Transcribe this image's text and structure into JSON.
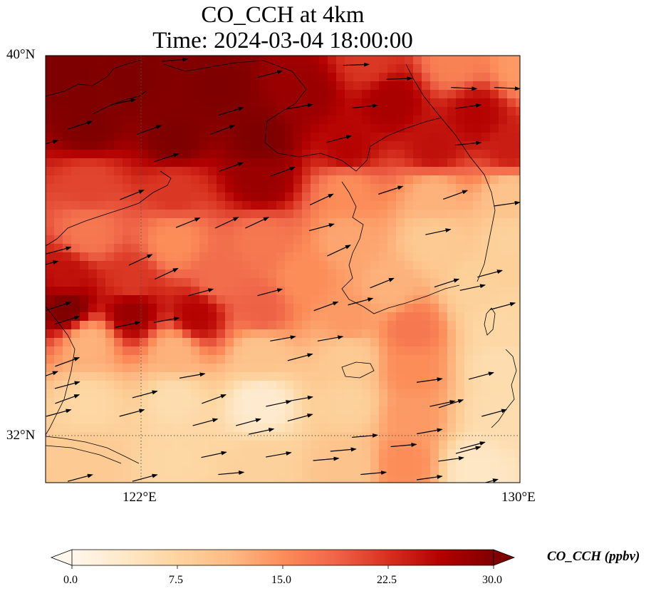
{
  "title": {
    "line1": "CO_CCH at 4km",
    "line2": "Time: 2024-03-04 18:00:00"
  },
  "map": {
    "lon_range": [
      119,
      130
    ],
    "lat_range": [
      30.8,
      40
    ],
    "lat_ticks": [
      "40°N",
      "32°N"
    ],
    "lon_ticks": [
      "122°E",
      "130°E"
    ],
    "gridlines": {
      "lat": [
        32
      ],
      "lon": [
        122
      ],
      "style": "dotted"
    }
  },
  "colorbar": {
    "label": "CO_CCH (ppbv)",
    "ticks": [
      "0.0",
      "7.5",
      "15.0",
      "22.5",
      "30.0"
    ],
    "range": [
      0,
      30
    ],
    "colormap": "OrRd",
    "colors": [
      "#fff7ec",
      "#fee8c8",
      "#fdd49e",
      "#fdbb84",
      "#fc8d59",
      "#ef6548",
      "#d7301f",
      "#b30000",
      "#7f0000"
    ],
    "extend": "both"
  },
  "field_description": "CO concentration field with high values (~30 ppbv) over the Bohai Sea / northern Yellow Sea band and a secondary band near 34.5°N; low values (~3-8 ppbv) in the south. Wind vectors point generally eastward.",
  "field_points": [
    {
      "lon": 119.5,
      "lat": 39.5,
      "v": 30
    },
    {
      "lon": 121,
      "lat": 39.5,
      "v": 30
    },
    {
      "lon": 123,
      "lat": 39.3,
      "v": 30
    },
    {
      "lon": 125,
      "lat": 39.2,
      "v": 28
    },
    {
      "lon": 127,
      "lat": 39,
      "v": 27
    },
    {
      "lon": 129,
      "lat": 38.7,
      "v": 26
    },
    {
      "lon": 130,
      "lat": 39.8,
      "v": 14
    },
    {
      "lon": 128.5,
      "lat": 39.9,
      "v": 16
    },
    {
      "lon": 126.5,
      "lat": 39.9,
      "v": 22
    },
    {
      "lon": 120,
      "lat": 38.5,
      "v": 30
    },
    {
      "lon": 122,
      "lat": 38.2,
      "v": 30
    },
    {
      "lon": 124,
      "lat": 38.2,
      "v": 30
    },
    {
      "lon": 126,
      "lat": 38,
      "v": 26
    },
    {
      "lon": 128,
      "lat": 38,
      "v": 25
    },
    {
      "lon": 129.8,
      "lat": 38,
      "v": 24
    },
    {
      "lon": 120,
      "lat": 37.2,
      "v": 21
    },
    {
      "lon": 122,
      "lat": 37.1,
      "v": 22
    },
    {
      "lon": 124,
      "lat": 37.3,
      "v": 28
    },
    {
      "lon": 126,
      "lat": 37.1,
      "v": 15
    },
    {
      "lon": 128,
      "lat": 37,
      "v": 12
    },
    {
      "lon": 129.8,
      "lat": 37,
      "v": 10
    },
    {
      "lon": 120,
      "lat": 36.2,
      "v": 17
    },
    {
      "lon": 122,
      "lat": 36,
      "v": 15
    },
    {
      "lon": 124,
      "lat": 36,
      "v": 17
    },
    {
      "lon": 126,
      "lat": 36,
      "v": 13
    },
    {
      "lon": 128,
      "lat": 36,
      "v": 9
    },
    {
      "lon": 129.8,
      "lat": 36,
      "v": 8
    },
    {
      "lon": 119.5,
      "lat": 35.2,
      "v": 25
    },
    {
      "lon": 121,
      "lat": 35.1,
      "v": 22
    },
    {
      "lon": 123,
      "lat": 35.2,
      "v": 18
    },
    {
      "lon": 125,
      "lat": 35.2,
      "v": 15
    },
    {
      "lon": 127,
      "lat": 35,
      "v": 12
    },
    {
      "lon": 129,
      "lat": 35,
      "v": 8
    },
    {
      "lon": 119.5,
      "lat": 34.6,
      "v": 30
    },
    {
      "lon": 121,
      "lat": 34.5,
      "v": 28
    },
    {
      "lon": 122.5,
      "lat": 34.4,
      "v": 26
    },
    {
      "lon": 124,
      "lat": 34.5,
      "v": 19
    },
    {
      "lon": 126,
      "lat": 34.3,
      "v": 14
    },
    {
      "lon": 127.5,
      "lat": 34.1,
      "v": 17
    },
    {
      "lon": 129.5,
      "lat": 34.2,
      "v": 7
    },
    {
      "lon": 120,
      "lat": 33.8,
      "v": 12
    },
    {
      "lon": 122,
      "lat": 33.6,
      "v": 12
    },
    {
      "lon": 124,
      "lat": 33.6,
      "v": 10
    },
    {
      "lon": 126,
      "lat": 33.5,
      "v": 9
    },
    {
      "lon": 127.5,
      "lat": 33.2,
      "v": 15
    },
    {
      "lon": 129.5,
      "lat": 33.3,
      "v": 6
    },
    {
      "lon": 120,
      "lat": 32.5,
      "v": 7
    },
    {
      "lon": 122,
      "lat": 32.6,
      "v": 6
    },
    {
      "lon": 124,
      "lat": 32.5,
      "v": 3
    },
    {
      "lon": 126,
      "lat": 32.5,
      "v": 8
    },
    {
      "lon": 127.5,
      "lat": 32.2,
      "v": 14
    },
    {
      "lon": 129.5,
      "lat": 32.3,
      "v": 6
    },
    {
      "lon": 120,
      "lat": 31.3,
      "v": 9
    },
    {
      "lon": 122,
      "lat": 31.3,
      "v": 7
    },
    {
      "lon": 124,
      "lat": 31.2,
      "v": 8
    },
    {
      "lon": 126,
      "lat": 31.2,
      "v": 10
    },
    {
      "lon": 127.3,
      "lat": 31.2,
      "v": 15
    },
    {
      "lon": 129,
      "lat": 31.1,
      "v": 4
    }
  ],
  "wind_vectors": [
    {
      "lon": 122.0,
      "lat": 39.9,
      "dir": 5
    },
    {
      "lon": 124.2,
      "lat": 39.6,
      "dir": 15
    },
    {
      "lon": 126.2,
      "lat": 39.8,
      "dir": 2
    },
    {
      "lon": 127.2,
      "lat": 39.5,
      "dir": 2
    },
    {
      "lon": 128.7,
      "lat": 39.3,
      "dir": -3
    },
    {
      "lon": 129.7,
      "lat": 39.3,
      "dir": -3
    },
    {
      "lon": 120.8,
      "lat": 39.0,
      "dir": 12
    },
    {
      "lon": 123.3,
      "lat": 38.8,
      "dir": 17
    },
    {
      "lon": 124.9,
      "lat": 38.9,
      "dir": 10
    },
    {
      "lon": 126.4,
      "lat": 38.9,
      "dir": 6
    },
    {
      "lon": 128.8,
      "lat": 38.9,
      "dir": 8
    },
    {
      "lon": 119.8,
      "lat": 38.5,
      "dir": 18
    },
    {
      "lon": 121.4,
      "lat": 38.4,
      "dir": 20
    },
    {
      "lon": 123.1,
      "lat": 38.4,
      "dir": 20
    },
    {
      "lon": 125.8,
      "lat": 38.2,
      "dir": 15
    },
    {
      "lon": 128.8,
      "lat": 38.1,
      "dir": 6
    },
    {
      "lon": 121.8,
      "lat": 37.8,
      "dir": 18
    },
    {
      "lon": 123.3,
      "lat": 37.6,
      "dir": 20
    },
    {
      "lon": 124.5,
      "lat": 37.5,
      "dir": 20
    },
    {
      "lon": 127.0,
      "lat": 37.1,
      "dir": 18
    },
    {
      "lon": 128.5,
      "lat": 37.0,
      "dir": 20
    },
    {
      "lon": 121.0,
      "lat": 37.0,
      "dir": 22
    },
    {
      "lon": 125.4,
      "lat": 36.9,
      "dir": 25
    },
    {
      "lon": 128.1,
      "lat": 36.2,
      "dir": 12
    },
    {
      "lon": 129.7,
      "lat": 36.8,
      "dir": 8
    },
    {
      "lon": 122.3,
      "lat": 36.4,
      "dir": 22
    },
    {
      "lon": 123.2,
      "lat": 36.4,
      "dir": 25
    },
    {
      "lon": 123.9,
      "lat": 36.4,
      "dir": 25
    },
    {
      "lon": 125.4,
      "lat": 36.3,
      "dir": 15
    },
    {
      "lon": 125.8,
      "lat": 35.8,
      "dir": 25
    },
    {
      "lon": 119.3,
      "lat": 35.8,
      "dir": 15
    },
    {
      "lon": 121.2,
      "lat": 35.6,
      "dir": 25
    },
    {
      "lon": 121.8,
      "lat": 35.3,
      "dir": 25
    },
    {
      "lon": 126.8,
      "lat": 35.1,
      "dir": 22
    },
    {
      "lon": 128.3,
      "lat": 35.1,
      "dir": 18
    },
    {
      "lon": 129.3,
      "lat": 35.3,
      "dir": 15
    },
    {
      "lon": 122.6,
      "lat": 34.9,
      "dir": 15
    },
    {
      "lon": 124.2,
      "lat": 34.9,
      "dir": 15
    },
    {
      "lon": 125.5,
      "lat": 34.6,
      "dir": 20
    },
    {
      "lon": 126.3,
      "lat": 34.7,
      "dir": 15
    },
    {
      "lon": 119.3,
      "lat": 34.6,
      "dir": 18
    },
    {
      "lon": 119.5,
      "lat": 34.3,
      "dir": 18
    },
    {
      "lon": 128.9,
      "lat": 35.0,
      "dir": 12
    },
    {
      "lon": 129.6,
      "lat": 34.6,
      "dir": 15
    },
    {
      "lon": 120.9,
      "lat": 34.2,
      "dir": 12
    },
    {
      "lon": 121.8,
      "lat": 34.3,
      "dir": 10
    },
    {
      "lon": 124.5,
      "lat": 33.9,
      "dir": 10
    },
    {
      "lon": 125.6,
      "lat": 33.9,
      "dir": 10
    },
    {
      "lon": 124.9,
      "lat": 33.5,
      "dir": 15
    },
    {
      "lon": 119.5,
      "lat": 33.4,
      "dir": 20
    },
    {
      "lon": 122.4,
      "lat": 33.1,
      "dir": 10
    },
    {
      "lon": 127.9,
      "lat": 33.0,
      "dir": 8
    },
    {
      "lon": 129.1,
      "lat": 33.1,
      "dir": 15
    },
    {
      "lon": 122.9,
      "lat": 32.6,
      "dir": 20
    },
    {
      "lon": 124.4,
      "lat": 32.5,
      "dir": 12
    },
    {
      "lon": 124.9,
      "lat": 32.6,
      "dir": 10
    },
    {
      "lon": 128.2,
      "lat": 32.5,
      "dir": 12
    },
    {
      "lon": 119.5,
      "lat": 32.9,
      "dir": 15
    },
    {
      "lon": 121.3,
      "lat": 32.7,
      "dir": 15
    },
    {
      "lon": 124.9,
      "lat": 32.2,
      "dir": 15
    },
    {
      "lon": 128.4,
      "lat": 32.5,
      "dir": 18
    },
    {
      "lon": 129.4,
      "lat": 32.3,
      "dir": 15
    },
    {
      "lon": 119.5,
      "lat": 32.6,
      "dir": 20
    },
    {
      "lon": 121.0,
      "lat": 32.3,
      "dir": 15
    },
    {
      "lon": 122.7,
      "lat": 32.1,
      "dir": 15
    },
    {
      "lon": 124.0,
      "lat": 31.9,
      "dir": 12
    },
    {
      "lon": 126.4,
      "lat": 31.8,
      "dir": 5
    },
    {
      "lon": 127.9,
      "lat": 31.9,
      "dir": 10
    },
    {
      "lon": 119.3,
      "lat": 32.3,
      "dir": 15
    },
    {
      "lon": 123.7,
      "lat": 32.1,
      "dir": 15
    },
    {
      "lon": 125.9,
      "lat": 31.5,
      "dir": 5
    },
    {
      "lon": 127.3,
      "lat": 31.6,
      "dir": 5
    },
    {
      "lon": 128.9,
      "lat": 31.6,
      "dir": 15
    },
    {
      "lon": 122.9,
      "lat": 31.4,
      "dir": 12
    },
    {
      "lon": 124.4,
      "lat": 31.4,
      "dir": 10
    },
    {
      "lon": 125.5,
      "lat": 31.3,
      "dir": 5
    },
    {
      "lon": 128.8,
      "lat": 31.5,
      "dir": 15
    },
    {
      "lon": 119.8,
      "lat": 30.9,
      "dir": 15
    },
    {
      "lon": 121.3,
      "lat": 30.9,
      "dir": 15
    },
    {
      "lon": 123.3,
      "lat": 31.0,
      "dir": 5
    },
    {
      "lon": 126.6,
      "lat": 31.0,
      "dir": 5
    },
    {
      "lon": 127.9,
      "lat": 30.9,
      "dir": 8
    },
    {
      "lon": 129.2,
      "lat": 30.8,
      "dir": 15
    },
    {
      "lon": 128.4,
      "lat": 31.3,
      "dir": 8
    },
    {
      "lon": 119.0,
      "lat": 38.1,
      "dir": 15
    },
    {
      "lon": 119.0,
      "lat": 35.5,
      "dir": 15
    },
    {
      "lon": 119.0,
      "lat": 33.1,
      "dir": 20
    }
  ]
}
